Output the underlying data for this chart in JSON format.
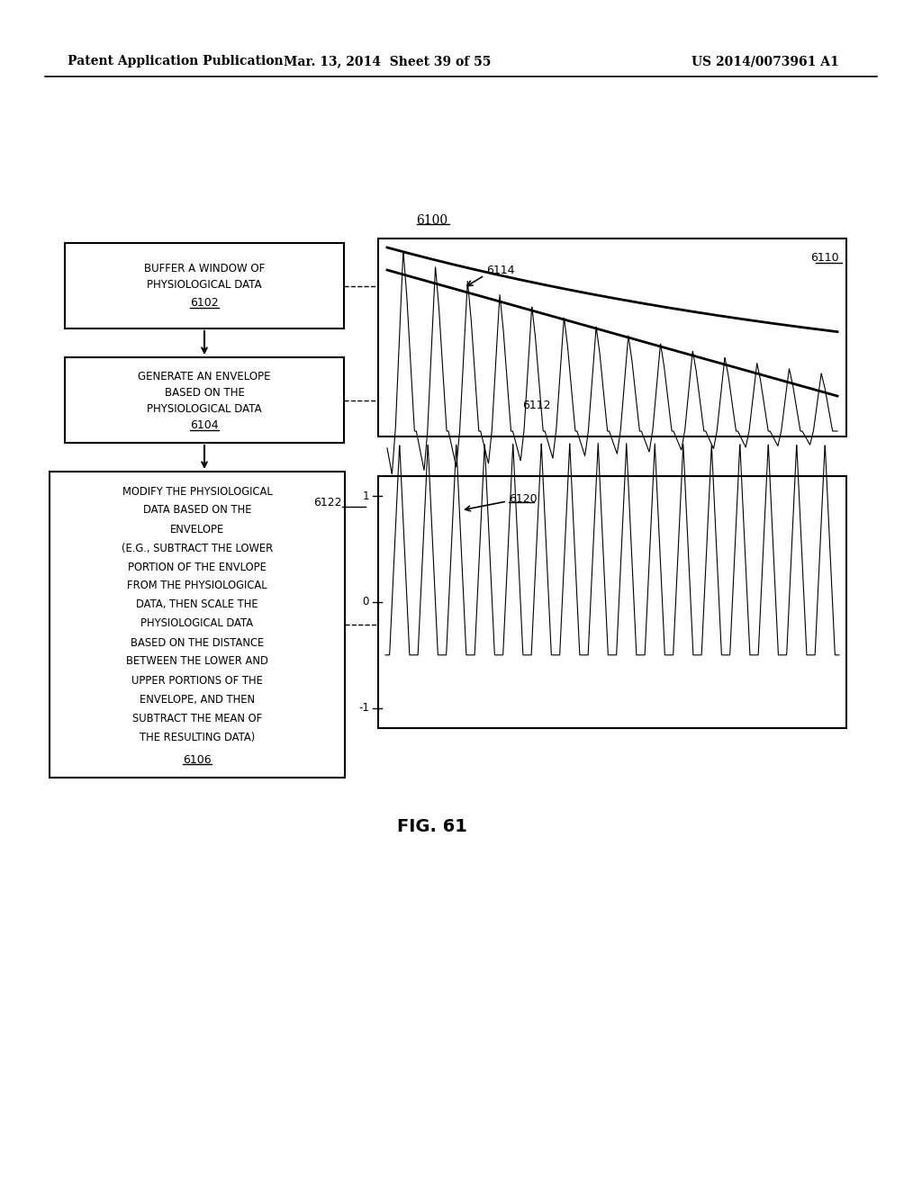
{
  "header_left": "Patent Application Publication",
  "header_mid": "Mar. 13, 2014  Sheet 39 of 55",
  "header_right": "US 2014/0073961 A1",
  "fig_label": "FIG. 61",
  "diagram_label": "6100",
  "box1_text": "BUFFER A WINDOW OF\nPHYSIOLOGICAL DATA\n6102",
  "box2_text": "GENERATE AN ENVELOPE\nBASED ON THE\nPHYSIOLOGICAL DATA\n6104",
  "box3_text": "MODIFY THE PHYSIOLOGICAL\nDATA BASED ON THE\nENVELOPE\n(E.G., SUBTRACT THE LOWER\nPORTION OF THE ENVLOPE\nFROM THE PHYSIOLOGICAL\nDATA, THEN SCALE THE\nPHYSIOLOGICAL DATA\nBASED ON THE DISTANCE\nBETWEEN THE LOWER AND\nUPPER PORTIONS OF THE\nENVELOPE, AND THEN\nSUBTRACT THE MEAN OF\nTHE RESULTING DATA)\n6106",
  "label_6110": "6110",
  "label_6112": "6112",
  "label_6114": "6114",
  "label_6120": "6120",
  "label_6122": "6122",
  "bg_color": "#ffffff",
  "line_color": "#000000",
  "box_border_color": "#000000",
  "header_fontsize": 10,
  "body_fontsize": 9
}
